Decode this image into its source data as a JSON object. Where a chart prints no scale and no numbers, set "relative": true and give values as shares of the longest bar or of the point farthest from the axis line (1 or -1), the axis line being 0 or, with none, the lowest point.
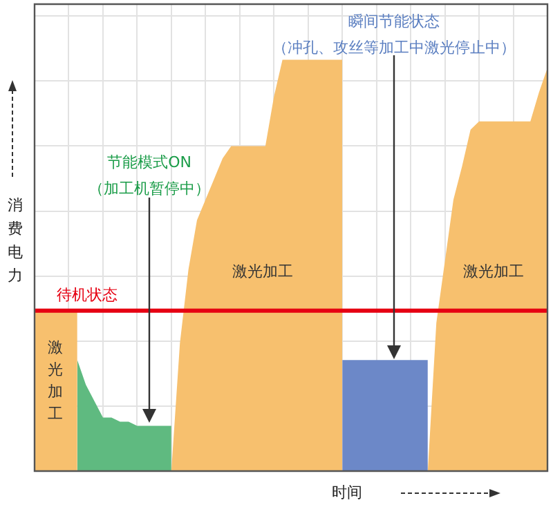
{
  "chart_data": {
    "type": "area",
    "relative": true,
    "tick_labels": false,
    "grid": true,
    "legend": false,
    "xlabel": "时间",
    "ylabel": "消费电力",
    "categories": [
      null,
      null,
      null,
      null,
      null,
      null,
      null,
      null,
      null,
      null,
      null,
      null,
      null,
      null,
      null,
      null,
      null,
      null,
      null,
      null,
      null,
      null,
      null,
      null,
      null,
      null,
      null,
      null,
      null,
      null,
      null,
      null,
      null,
      null,
      null,
      null,
      null,
      null,
      null,
      null,
      null,
      null,
      null,
      null,
      null,
      null,
      null,
      null,
      null,
      null,
      null,
      null,
      null,
      null,
      null,
      null,
      null,
      null,
      null,
      null,
      null
    ],
    "series": [
      {
        "color": "#f7c06e",
        "values": [
          0.39,
          0.39,
          0.39,
          0.39,
          0.39,
          0.39,
          null,
          null,
          null,
          null,
          null,
          null,
          null,
          null,
          null,
          null,
          0,
          0.31,
          0.49,
          0.61,
          0.66,
          0.71,
          0.76,
          0.79,
          0.79,
          0.79,
          0.79,
          0.79,
          0.91,
          1,
          1,
          1,
          1,
          1,
          1,
          1,
          1,
          null,
          null,
          null,
          null,
          null,
          null,
          null,
          null,
          null,
          0,
          0.36,
          0.51,
          0.66,
          0.74,
          0.83,
          0.85,
          0.85,
          0.85,
          0.85,
          0.85,
          0.85,
          0.85,
          0.92,
          0.98
        ]
      },
      {
        "color": "#5fba80",
        "values": [
          null,
          null,
          null,
          null,
          null,
          0.27,
          0.21,
          0.17,
          0.13,
          0.13,
          0.12,
          0.12,
          0.11,
          0.11,
          0.11,
          0.11,
          0.11,
          null,
          null,
          null,
          null,
          null,
          null,
          null,
          null,
          null,
          null,
          null,
          null,
          null,
          null,
          null,
          null,
          null,
          null,
          null,
          null,
          null,
          null,
          null,
          null,
          null,
          null,
          null,
          null,
          null,
          null,
          null,
          null,
          null,
          null,
          null,
          null,
          null,
          null,
          null,
          null,
          null,
          null,
          null,
          null
        ]
      },
      {
        "color": "#6c88c8",
        "values": [
          null,
          null,
          null,
          null,
          null,
          null,
          null,
          null,
          null,
          null,
          null,
          null,
          null,
          null,
          null,
          null,
          null,
          null,
          null,
          null,
          null,
          null,
          null,
          null,
          null,
          null,
          null,
          null,
          null,
          null,
          null,
          null,
          null,
          null,
          null,
          null,
          0.27,
          0.27,
          0.27,
          0.27,
          0.27,
          0.27,
          0.27,
          0.27,
          0.27,
          0.27,
          0.27,
          null,
          null,
          null,
          null,
          null,
          null,
          null,
          null,
          null,
          null,
          null,
          null,
          null,
          null
        ]
      }
    ],
    "ref_lines": [
      {
        "axis": "y",
        "value": 0.39,
        "label": "待机状态",
        "color": "#e60012"
      }
    ],
    "annotations": [
      "激光加工",
      "节能模式ON",
      "（加工机暂停中）",
      "瞬间节能状态",
      "（冲孔、攻丝等加工中激光停止中）",
      "激光加工",
      "激光加工"
    ]
  }
}
